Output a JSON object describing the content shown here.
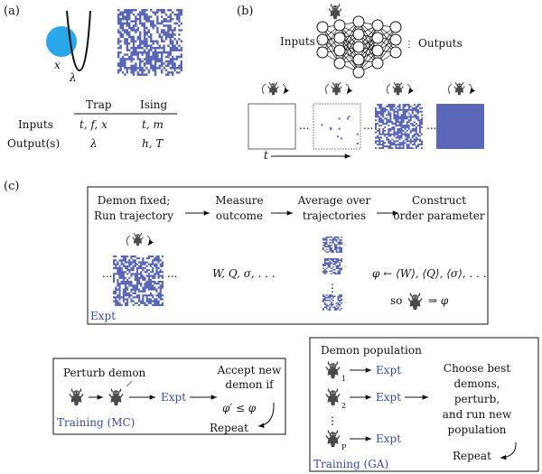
{
  "colors": {
    "lattice": "#5a66b8",
    "ball": "#2aa7e8",
    "accent_text": "#3a4bb0",
    "ink": "#111111"
  },
  "panel_a": {
    "label": "(a)",
    "potential_labels": {
      "x": "x",
      "lambda": "λ"
    },
    "table": {
      "columns": [
        "Trap",
        "Ising"
      ],
      "rows": [
        {
          "name": "Inputs",
          "trap": "t, f, x",
          "ising": "t, m"
        },
        {
          "name": "Output(s)",
          "trap": "λ",
          "ising": "h, T"
        }
      ]
    }
  },
  "panel_b": {
    "label": "(b)",
    "inputs_label": "Inputs",
    "outputs_label": "Outputs",
    "time_label": "t",
    "ellipsis": "..."
  },
  "panel_c": {
    "label": "(c)",
    "flow_steps": [
      {
        "line1": "Demon fixed;",
        "line2": "Run trajectory"
      },
      {
        "line1": "Measure",
        "line2": "outcome"
      },
      {
        "line1": "Average over",
        "line2": "trajectories"
      },
      {
        "line1": "Construct",
        "line2": "order parameter"
      }
    ],
    "observables": "W, Q, σ, . . .",
    "order_parameter": "φ ← ⟨W⟩, ⟨Q⟩, ⟨σ⟩, . . .",
    "so_text": "so",
    "implies": "⇒ φ",
    "expt_label": "Expt",
    "ellipsis": "...",
    "vdots": "⋮"
  },
  "training_mc": {
    "perturb": "Perturb demon",
    "accept_line1": "Accept new",
    "accept_line2": "demon if",
    "condition": "φ′ ≤ φ",
    "expt": "Expt",
    "repeat": "Repeat",
    "title": "Training (MC)"
  },
  "training_ga": {
    "population": "Demon population",
    "expt": "Expt",
    "subscripts": [
      "1",
      "2",
      "P"
    ],
    "choose_lines": [
      "Choose best",
      "demons,",
      "perturb,",
      "and run new",
      "population"
    ],
    "repeat": "Repeat",
    "title": "Training (GA)",
    "vdots": "⋮"
  }
}
